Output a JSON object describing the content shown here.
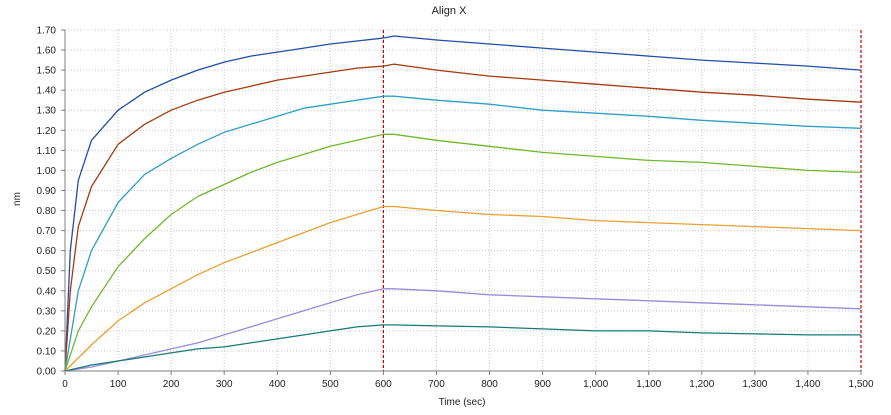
{
  "chart_data": {
    "type": "line",
    "title": "Align X",
    "xlabel": "Time (sec)",
    "ylabel": "nm",
    "xlim": [
      0,
      1500
    ],
    "ylim": [
      0,
      1.7
    ],
    "xticks": [
      0,
      100,
      200,
      300,
      400,
      500,
      600,
      700,
      800,
      900,
      1000,
      1100,
      1200,
      1300,
      1400,
      1500
    ],
    "xtick_labels": [
      "0",
      "100",
      "200",
      "300",
      "400",
      "500",
      "600",
      "700",
      "800",
      "900",
      "1,000",
      "1,100",
      "1,200",
      "1,300",
      "1,400",
      "1,500"
    ],
    "yticks": [
      0,
      0.1,
      0.2,
      0.3,
      0.4,
      0.5,
      0.6,
      0.7,
      0.8,
      0.9,
      1.0,
      1.1,
      1.2,
      1.3,
      1.4,
      1.5,
      1.6,
      1.7
    ],
    "ytick_labels": [
      "0.00",
      "0.10",
      "0.20",
      "0.30",
      "0.40",
      "0.50",
      "0.60",
      "0.70",
      "0.80",
      "0.90",
      "1.00",
      "1.10",
      "1.20",
      "1.30",
      "1.40",
      "1.50",
      "1.60",
      "1.70"
    ],
    "grid": true,
    "vlines": [
      {
        "x": 600,
        "color": "#cc0000",
        "style": "dashed"
      },
      {
        "x": 1500,
        "color": "#cc0000",
        "style": "dashed"
      }
    ],
    "series": [
      {
        "color": "#1f4fa6",
        "x": [
          0,
          10,
          25,
          50,
          100,
          150,
          200,
          250,
          300,
          350,
          400,
          450,
          500,
          550,
          600,
          620,
          700,
          800,
          900,
          1000,
          1100,
          1200,
          1300,
          1400,
          1500
        ],
        "y": [
          0,
          0.6,
          0.95,
          1.15,
          1.3,
          1.39,
          1.45,
          1.5,
          1.54,
          1.57,
          1.59,
          1.61,
          1.63,
          1.645,
          1.66,
          1.67,
          1.65,
          1.63,
          1.61,
          1.59,
          1.57,
          1.55,
          1.535,
          1.52,
          1.5
        ]
      },
      {
        "color": "#a33a10",
        "x": [
          0,
          10,
          25,
          50,
          100,
          150,
          200,
          250,
          300,
          350,
          400,
          450,
          500,
          550,
          600,
          620,
          700,
          800,
          900,
          1000,
          1100,
          1200,
          1300,
          1400,
          1500
        ],
        "y": [
          0,
          0.4,
          0.72,
          0.92,
          1.13,
          1.23,
          1.3,
          1.35,
          1.39,
          1.42,
          1.45,
          1.47,
          1.49,
          1.51,
          1.52,
          1.53,
          1.5,
          1.47,
          1.45,
          1.43,
          1.41,
          1.39,
          1.375,
          1.355,
          1.34
        ]
      },
      {
        "color": "#2f9fc6",
        "x": [
          0,
          25,
          50,
          100,
          150,
          200,
          250,
          300,
          350,
          400,
          450,
          500,
          550,
          600,
          620,
          700,
          800,
          900,
          1000,
          1100,
          1200,
          1300,
          1400,
          1500
        ],
        "y": [
          0,
          0.4,
          0.6,
          0.84,
          0.98,
          1.06,
          1.13,
          1.19,
          1.23,
          1.27,
          1.31,
          1.33,
          1.35,
          1.37,
          1.37,
          1.35,
          1.33,
          1.3,
          1.285,
          1.27,
          1.25,
          1.235,
          1.22,
          1.21
        ]
      },
      {
        "color": "#6fb82c",
        "x": [
          0,
          25,
          50,
          100,
          150,
          200,
          250,
          300,
          350,
          400,
          450,
          500,
          550,
          600,
          620,
          700,
          800,
          900,
          1000,
          1100,
          1200,
          1300,
          1400,
          1500
        ],
        "y": [
          0,
          0.2,
          0.32,
          0.52,
          0.66,
          0.78,
          0.87,
          0.93,
          0.99,
          1.04,
          1.08,
          1.12,
          1.15,
          1.18,
          1.18,
          1.15,
          1.12,
          1.09,
          1.07,
          1.05,
          1.04,
          1.02,
          1.0,
          0.99
        ]
      },
      {
        "color": "#e8a030",
        "x": [
          0,
          50,
          100,
          150,
          200,
          250,
          300,
          350,
          400,
          450,
          500,
          550,
          600,
          620,
          700,
          800,
          900,
          1000,
          1100,
          1200,
          1300,
          1400,
          1500
        ],
        "y": [
          0,
          0.13,
          0.25,
          0.34,
          0.41,
          0.48,
          0.54,
          0.59,
          0.64,
          0.69,
          0.74,
          0.78,
          0.82,
          0.82,
          0.8,
          0.78,
          0.77,
          0.75,
          0.74,
          0.73,
          0.72,
          0.71,
          0.7
        ]
      },
      {
        "color": "#9a8ad8",
        "x": [
          0,
          50,
          100,
          150,
          200,
          250,
          300,
          350,
          400,
          450,
          500,
          550,
          600,
          620,
          700,
          800,
          900,
          1000,
          1100,
          1200,
          1300,
          1400,
          1500
        ],
        "y": [
          0,
          0.02,
          0.05,
          0.08,
          0.11,
          0.14,
          0.18,
          0.22,
          0.26,
          0.3,
          0.34,
          0.38,
          0.41,
          0.41,
          0.4,
          0.38,
          0.37,
          0.36,
          0.35,
          0.34,
          0.33,
          0.32,
          0.31
        ]
      },
      {
        "color": "#1a7878",
        "x": [
          0,
          50,
          100,
          150,
          200,
          250,
          300,
          350,
          400,
          450,
          500,
          550,
          600,
          620,
          700,
          800,
          900,
          1000,
          1100,
          1200,
          1300,
          1400,
          1500
        ],
        "y": [
          0,
          0.03,
          0.05,
          0.07,
          0.09,
          0.11,
          0.12,
          0.14,
          0.16,
          0.18,
          0.2,
          0.22,
          0.23,
          0.23,
          0.225,
          0.22,
          0.21,
          0.2,
          0.2,
          0.19,
          0.185,
          0.18,
          0.18
        ]
      }
    ]
  }
}
